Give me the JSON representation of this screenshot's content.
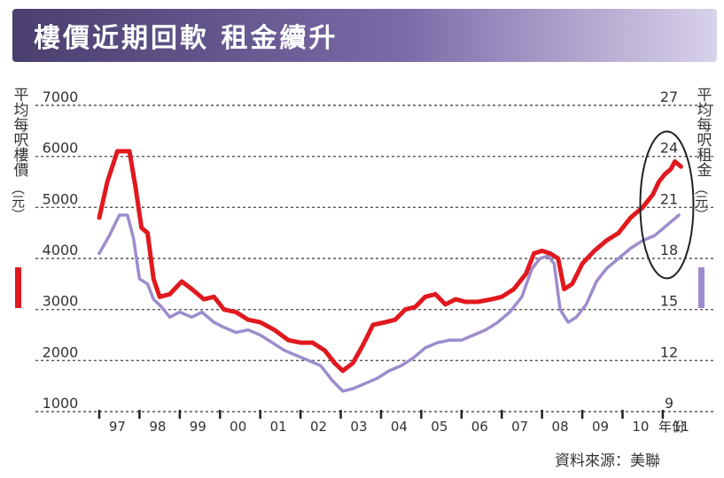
{
  "title": "樓價近期回軟 租金續升",
  "source": "資料來源：美聯",
  "chart_data": {
    "type": "line",
    "left_axis_label": "平均每呎樓價",
    "left_axis_unit": "（元）",
    "right_axis_label": "平均每呎租金",
    "right_axis_unit": "（元）",
    "x_axis_label": "年份",
    "x_ticks": [
      "97",
      "98",
      "99",
      "00",
      "01",
      "02",
      "03",
      "04",
      "05",
      "06",
      "07",
      "08",
      "09",
      "10",
      "11"
    ],
    "y_left_ticks": [
      1000,
      2000,
      3000,
      4000,
      5000,
      6000,
      7000
    ],
    "y_right_ticks": [
      9,
      12,
      15,
      18,
      21,
      24,
      27
    ],
    "ylim_left": [
      1000,
      7000
    ],
    "ylim_right": [
      9,
      27
    ],
    "xlim": [
      1997.0,
      2011.75
    ],
    "grid": true,
    "colors": {
      "price": "#e0191e",
      "rent": "#9d8ccd"
    },
    "series": [
      {
        "key": "price",
        "axis": "left",
        "points": [
          [
            1997.0,
            4800
          ],
          [
            1997.2,
            5500
          ],
          [
            1997.45,
            6100
          ],
          [
            1997.75,
            6100
          ],
          [
            1997.9,
            5400
          ],
          [
            1998.05,
            4600
          ],
          [
            1998.2,
            4500
          ],
          [
            1998.35,
            3600
          ],
          [
            1998.5,
            3250
          ],
          [
            1998.75,
            3300
          ],
          [
            1999.05,
            3550
          ],
          [
            1999.3,
            3400
          ],
          [
            1999.6,
            3200
          ],
          [
            1999.85,
            3250
          ],
          [
            2000.1,
            3000
          ],
          [
            2000.4,
            2950
          ],
          [
            2000.7,
            2800
          ],
          [
            2001.0,
            2750
          ],
          [
            2001.35,
            2600
          ],
          [
            2001.7,
            2400
          ],
          [
            2002.0,
            2350
          ],
          [
            2002.3,
            2350
          ],
          [
            2002.6,
            2200
          ],
          [
            2002.85,
            1950
          ],
          [
            2003.05,
            1800
          ],
          [
            2003.3,
            1950
          ],
          [
            2003.55,
            2300
          ],
          [
            2003.8,
            2700
          ],
          [
            2004.1,
            2750
          ],
          [
            2004.35,
            2800
          ],
          [
            2004.6,
            3000
          ],
          [
            2004.85,
            3050
          ],
          [
            2005.1,
            3250
          ],
          [
            2005.35,
            3300
          ],
          [
            2005.6,
            3100
          ],
          [
            2005.85,
            3200
          ],
          [
            2006.1,
            3150
          ],
          [
            2006.4,
            3150
          ],
          [
            2006.75,
            3200
          ],
          [
            2007.0,
            3250
          ],
          [
            2007.3,
            3400
          ],
          [
            2007.6,
            3700
          ],
          [
            2007.8,
            4100
          ],
          [
            2008.0,
            4150
          ],
          [
            2008.2,
            4100
          ],
          [
            2008.4,
            4000
          ],
          [
            2008.55,
            3400
          ],
          [
            2008.75,
            3500
          ],
          [
            2009.0,
            3900
          ],
          [
            2009.3,
            4150
          ],
          [
            2009.6,
            4350
          ],
          [
            2009.9,
            4500
          ],
          [
            2010.2,
            4800
          ],
          [
            2010.5,
            5000
          ],
          [
            2010.75,
            5250
          ],
          [
            2010.9,
            5500
          ],
          [
            2011.05,
            5650
          ],
          [
            2011.2,
            5750
          ],
          [
            2011.3,
            5900
          ],
          [
            2011.45,
            5800
          ]
        ]
      },
      {
        "key": "rent",
        "axis": "left",
        "points": [
          [
            1997.0,
            4100
          ],
          [
            1997.25,
            4450
          ],
          [
            1997.5,
            4850
          ],
          [
            1997.7,
            4850
          ],
          [
            1997.85,
            4400
          ],
          [
            1998.0,
            3600
          ],
          [
            1998.2,
            3500
          ],
          [
            1998.35,
            3200
          ],
          [
            1998.55,
            3050
          ],
          [
            1998.75,
            2850
          ],
          [
            1999.0,
            2950
          ],
          [
            1999.3,
            2850
          ],
          [
            1999.55,
            2950
          ],
          [
            1999.85,
            2750
          ],
          [
            2000.1,
            2650
          ],
          [
            2000.4,
            2550
          ],
          [
            2000.7,
            2600
          ],
          [
            2001.0,
            2500
          ],
          [
            2001.3,
            2350
          ],
          [
            2001.6,
            2200
          ],
          [
            2001.9,
            2100
          ],
          [
            2002.2,
            2000
          ],
          [
            2002.5,
            1900
          ],
          [
            2002.8,
            1600
          ],
          [
            2003.05,
            1400
          ],
          [
            2003.3,
            1450
          ],
          [
            2003.6,
            1550
          ],
          [
            2003.9,
            1650
          ],
          [
            2004.2,
            1800
          ],
          [
            2004.5,
            1900
          ],
          [
            2004.8,
            2050
          ],
          [
            2005.1,
            2250
          ],
          [
            2005.4,
            2350
          ],
          [
            2005.7,
            2400
          ],
          [
            2006.0,
            2400
          ],
          [
            2006.3,
            2500
          ],
          [
            2006.6,
            2600
          ],
          [
            2006.9,
            2750
          ],
          [
            2007.2,
            2950
          ],
          [
            2007.5,
            3250
          ],
          [
            2007.75,
            3800
          ],
          [
            2007.95,
            4000
          ],
          [
            2008.15,
            4050
          ],
          [
            2008.3,
            3900
          ],
          [
            2008.45,
            3000
          ],
          [
            2008.65,
            2750
          ],
          [
            2008.85,
            2850
          ],
          [
            2009.1,
            3100
          ],
          [
            2009.35,
            3550
          ],
          [
            2009.6,
            3800
          ],
          [
            2009.9,
            4000
          ],
          [
            2010.2,
            4200
          ],
          [
            2010.5,
            4350
          ],
          [
            2010.8,
            4450
          ],
          [
            2011.1,
            4650
          ],
          [
            2011.4,
            4850
          ]
        ]
      }
    ],
    "annotation": {
      "type": "ellipse",
      "around": "2011 peak"
    }
  }
}
